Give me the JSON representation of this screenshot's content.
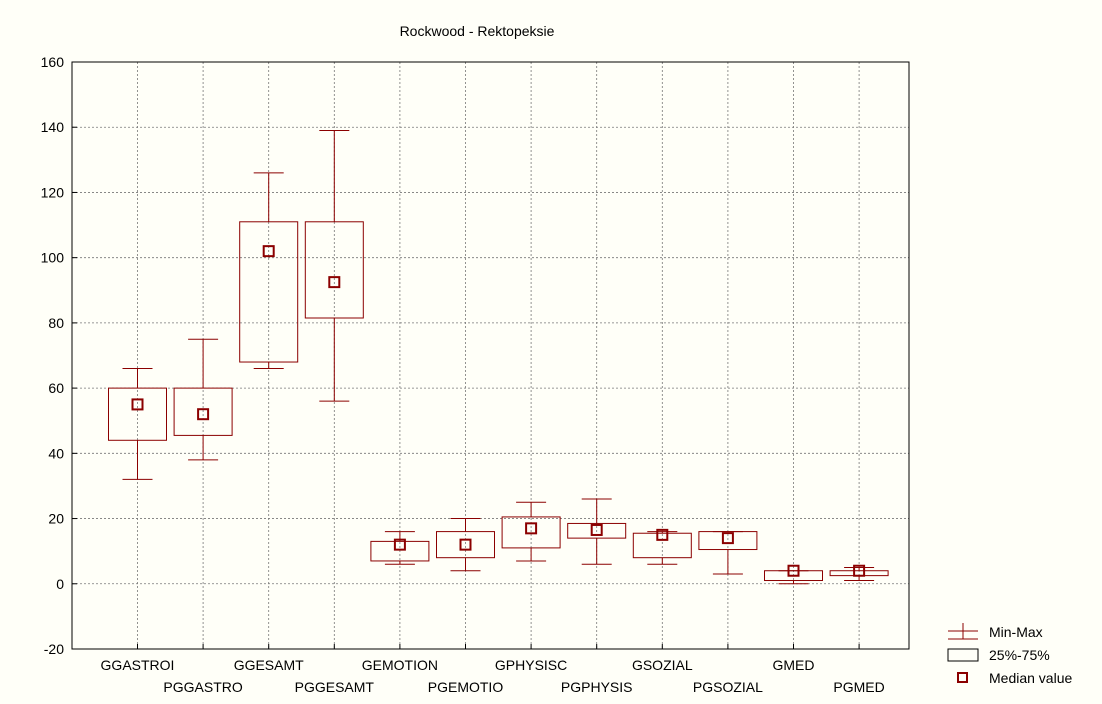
{
  "chart_data": {
    "type": "boxplot",
    "title": "Rockwood -  Rektopeksie",
    "xlabel": "",
    "ylabel": "",
    "ylim": [
      -20,
      160
    ],
    "yticks": [
      -20,
      0,
      20,
      40,
      60,
      80,
      100,
      120,
      140,
      160
    ],
    "grid": true,
    "legend_position": "bottom-right",
    "color": "#8b0000",
    "categories": [
      "GGASTROI",
      "PGGASTRO",
      "GGESAMT",
      "PGGESAMT",
      "GEMOTION",
      "PGEMOTIO",
      "GPHYSISC",
      "PGPHYSIS",
      "GSOZIAL",
      "PGSOZIAL",
      "GMED",
      "PGMED"
    ],
    "boxes": [
      {
        "min": 32,
        "q1": 44,
        "median": 55,
        "q3": 60,
        "max": 66
      },
      {
        "min": 38,
        "q1": 45.5,
        "median": 52,
        "q3": 60,
        "max": 75
      },
      {
        "min": 66,
        "q1": 68,
        "median": 102,
        "q3": 111,
        "max": 126
      },
      {
        "min": 56,
        "q1": 81.5,
        "median": 92.5,
        "q3": 111,
        "max": 139
      },
      {
        "min": 6,
        "q1": 7,
        "median": 12,
        "q3": 13,
        "max": 16
      },
      {
        "min": 4,
        "q1": 8,
        "median": 12,
        "q3": 16,
        "max": 20
      },
      {
        "min": 7,
        "q1": 11,
        "median": 17,
        "q3": 20.5,
        "max": 25
      },
      {
        "min": 6,
        "q1": 14,
        "median": 16.5,
        "q3": 18.5,
        "max": 26
      },
      {
        "min": 6,
        "q1": 8,
        "median": 15,
        "q3": 15.5,
        "max": 16
      },
      {
        "min": 3,
        "q1": 10.5,
        "median": 14,
        "q3": 16,
        "max": 16
      },
      {
        "min": 0,
        "q1": 1,
        "median": 4,
        "q3": 4,
        "max": 4
      },
      {
        "min": 1,
        "q1": 2.5,
        "median": 4,
        "q3": 4,
        "max": 5
      }
    ],
    "legend": {
      "minmax": "Min-Max",
      "box": "25%-75%",
      "median": "Median value"
    }
  }
}
